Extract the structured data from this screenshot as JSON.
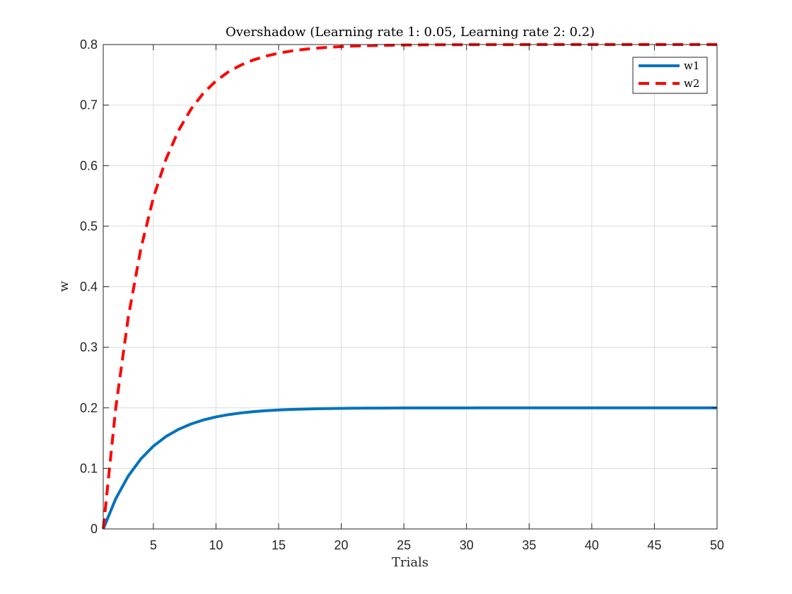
{
  "chart_data": {
    "type": "line",
    "title": "Overshadow (Learning rate 1: 0.05, Learning rate 2: 0.2)",
    "xlabel": "Trials",
    "ylabel": "w",
    "xlim": [
      1,
      50
    ],
    "ylim": [
      0,
      0.8
    ],
    "xticks": [
      5,
      10,
      15,
      20,
      25,
      30,
      35,
      40,
      45,
      50
    ],
    "yticks": [
      0,
      0.1,
      0.2,
      0.3,
      0.4,
      0.5,
      0.6,
      0.7,
      0.8
    ],
    "xtick_labels": [
      "5",
      "10",
      "15",
      "20",
      "25",
      "30",
      "35",
      "40",
      "45",
      "50"
    ],
    "ytick_labels": [
      "0",
      "0.1",
      "0.2",
      "0.3",
      "0.4",
      "0.5",
      "0.6",
      "0.7",
      "0.8"
    ],
    "grid": true,
    "legend_position": "top-right",
    "x": [
      1,
      2,
      3,
      4,
      5,
      6,
      7,
      8,
      9,
      10,
      11,
      12,
      13,
      14,
      15,
      16,
      17,
      18,
      19,
      20,
      21,
      22,
      23,
      24,
      25,
      26,
      27,
      28,
      29,
      30,
      31,
      32,
      33,
      34,
      35,
      36,
      37,
      38,
      39,
      40,
      41,
      42,
      43,
      44,
      45,
      46,
      47,
      48,
      49,
      50
    ],
    "series": [
      {
        "name": "w1",
        "color": "#0072BD",
        "style": "solid",
        "values": [
          0,
          0.05,
          0.0875,
          0.1156,
          0.1367,
          0.1525,
          0.1644,
          0.1733,
          0.18,
          0.185,
          0.1888,
          0.1916,
          0.1937,
          0.1953,
          0.1965,
          0.1974,
          0.198,
          0.1985,
          0.1989,
          0.1992,
          0.1994,
          0.1995,
          0.1996,
          0.1997,
          0.1998,
          0.1998,
          0.1999,
          0.1999,
          0.1999,
          0.1999,
          0.2,
          0.2,
          0.2,
          0.2,
          0.2,
          0.2,
          0.2,
          0.2,
          0.2,
          0.2,
          0.2,
          0.2,
          0.2,
          0.2,
          0.2,
          0.2,
          0.2,
          0.2,
          0.2,
          0.2
        ]
      },
      {
        "name": "w2",
        "color": "#FF0000",
        "style": "dashed",
        "values": [
          0,
          0.2,
          0.35,
          0.4625,
          0.5469,
          0.6102,
          0.6576,
          0.6932,
          0.7199,
          0.7399,
          0.755,
          0.7662,
          0.7747,
          0.781,
          0.7858,
          0.7893,
          0.792,
          0.794,
          0.7955,
          0.7966,
          0.7975,
          0.7981,
          0.7986,
          0.7989,
          0.7992,
          0.7994,
          0.7995,
          0.7997,
          0.7997,
          0.7998,
          0.7999,
          0.7999,
          0.7999,
          0.7999,
          0.8,
          0.8,
          0.8,
          0.8,
          0.8,
          0.8,
          0.8,
          0.8,
          0.8,
          0.8,
          0.8,
          0.8,
          0.8,
          0.8,
          0.8,
          0.8
        ]
      }
    ]
  }
}
